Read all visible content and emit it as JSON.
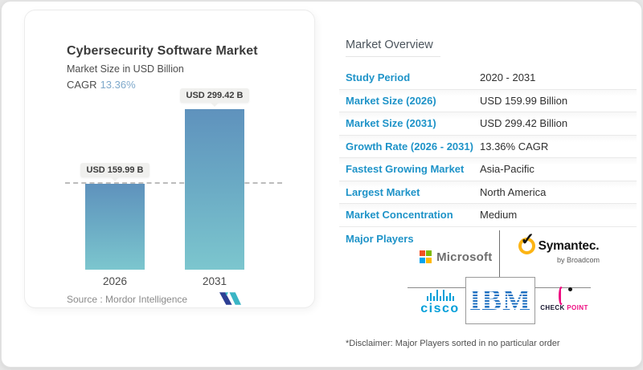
{
  "left_card": {
    "title": "Cybersecurity Software Market",
    "subtitle": "Market Size in USD Billion",
    "cagr_label": "CAGR",
    "cagr_value": "13.36%",
    "source_text": "Source :  Mordor Intelligence",
    "logo": "mordor-intelligence-mark"
  },
  "chart_data": {
    "type": "bar",
    "title": "Cybersecurity Software Market",
    "ylabel": "Market Size in USD Billion",
    "categories": [
      "2026",
      "2031"
    ],
    "values": [
      159.99,
      299.42
    ],
    "bar_labels": [
      "USD 159.99 B",
      "USD 299.42 B"
    ],
    "ylim": [
      0,
      299.42
    ],
    "grid": false,
    "reference_line_at": 159.99,
    "cagr": "13.36%",
    "bar_gradient_top": "#5f92bd",
    "bar_gradient_bottom": "#7cc6ce"
  },
  "overview": {
    "heading": "Market Overview",
    "rows": [
      {
        "label": "Study Period",
        "value": "2020 - 2031"
      },
      {
        "label": "Market Size (2026)",
        "value": "USD 159.99 Billion"
      },
      {
        "label": "Market Size (2031)",
        "value": "USD 299.42 Billion"
      },
      {
        "label": "Growth Rate (2026 - 2031)",
        "value": "13.36% CAGR"
      },
      {
        "label": "Fastest Growing Market",
        "value": "Asia-Pacific"
      },
      {
        "label": "Largest Market",
        "value": "North America"
      },
      {
        "label": "Market Concentration",
        "value": "Medium"
      }
    ],
    "major_players_label": "Major Players",
    "players": {
      "microsoft": {
        "text": "Microsoft"
      },
      "symantec": {
        "text": "Symantec.",
        "subtext": "by Broadcom",
        "check": "✓"
      },
      "cisco": {
        "text": "cisco"
      },
      "ibm": {
        "text": "IBM"
      },
      "checkpoint": {
        "text_primary": "CHECK",
        "text_secondary": " POINT"
      }
    },
    "disclaimer": "*Disclaimer: Major Players sorted in no particular order"
  },
  "colors": {
    "label_blue": "#1e93c8",
    "cagr_light_blue": "#7fa9cb",
    "bar_top": "#5f92bd",
    "bar_bottom": "#7cc6ce",
    "microsoft_squares": [
      "#f25022",
      "#7fba00",
      "#00a4ef",
      "#ffb900"
    ],
    "symantec_yellow": "#fcb414",
    "cisco_blue": "#049fd9",
    "ibm_blue": "#1f70c1",
    "checkpoint_pink": "#ee0c81",
    "mordor_navy": "#2c3f94",
    "mordor_teal": "#3ab5c5"
  }
}
